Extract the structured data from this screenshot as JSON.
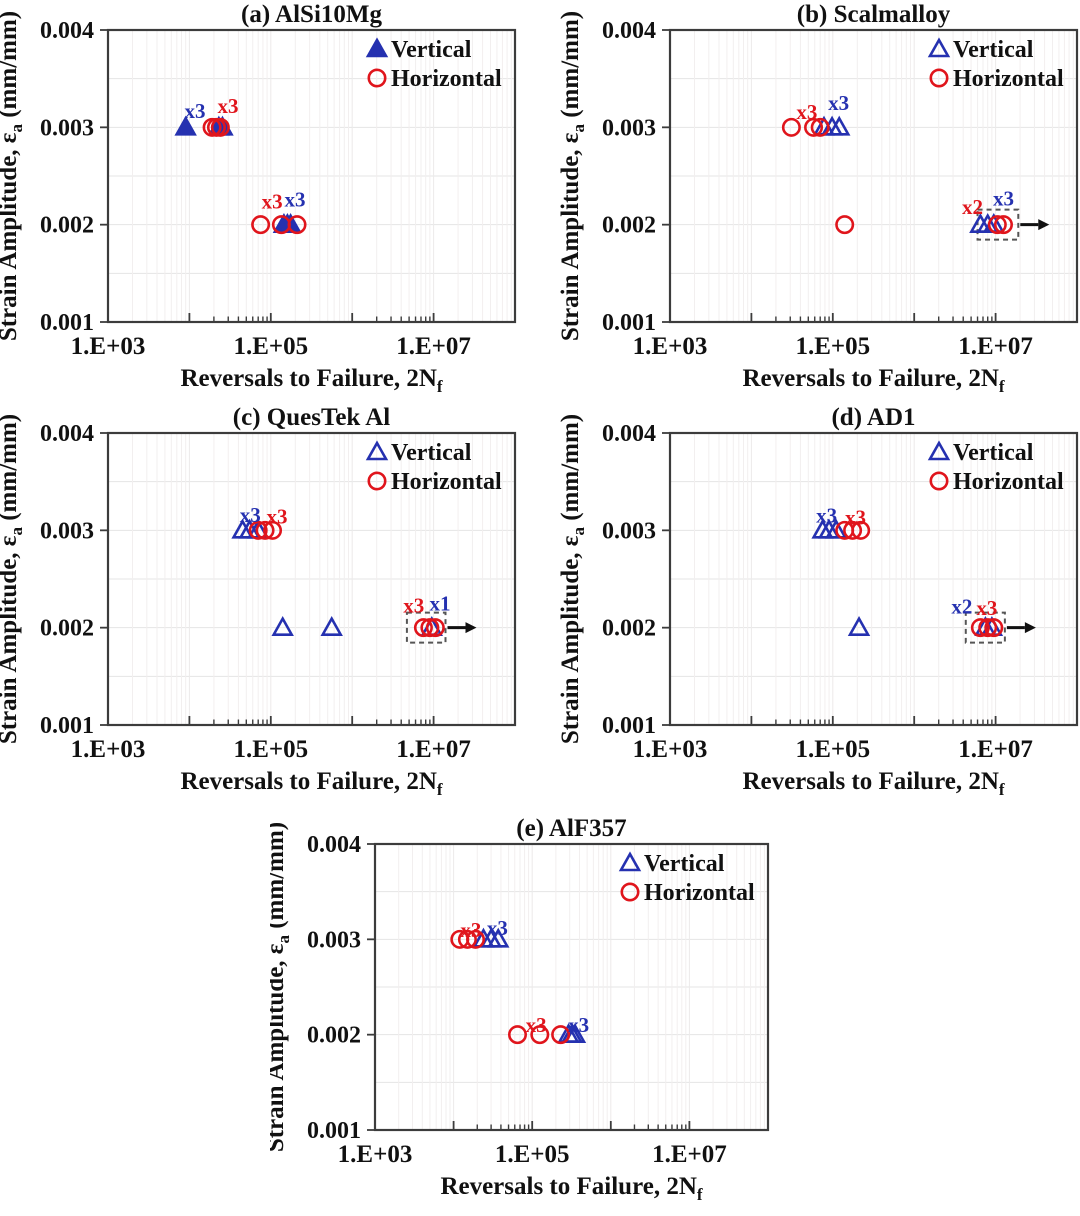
{
  "figure": {
    "axis": {
      "x_label_pre": "Reversals to Failure, 2N",
      "x_label_sub": "f",
      "y_label_pre": "Strain Amplitude, ε",
      "y_label_sub": "a",
      "y_label_post": " (mm/mm)",
      "x_tick_labels": [
        "1.E+03",
        "1.E+05",
        "1.E+07"
      ],
      "x_tick_values": [
        1000,
        100000,
        10000000
      ],
      "y_tick_labels": [
        "0.001",
        "0.002",
        "0.003",
        "0.004"
      ],
      "y_tick_values": [
        0.001,
        0.002,
        0.003,
        0.004
      ],
      "x_range": [
        1000,
        100000000
      ],
      "y_range": [
        0.001,
        0.004
      ],
      "x_scale": "log",
      "y_scale": "linear",
      "grid": "on"
    },
    "legend": {
      "position": "top-right-inside",
      "vertical_label": "Vertical",
      "horizontal_label": "Horizontal"
    },
    "colors": {
      "vertical": "#2531b0",
      "horizontal": "#e0151c",
      "text": "#111111",
      "frame": "#3c3c3c",
      "grid_horizontal": "#e4e4e4",
      "grid_vertical": "#f2efef",
      "grid_vertical_major": "#eceaea",
      "runout_box": "#555555",
      "arrow": "#111111"
    }
  },
  "chart_data": [
    {
      "id": "a",
      "type": "scatter",
      "title": "(a) AlSi10Mg",
      "series": [
        {
          "name": "Vertical",
          "marker": "triangle",
          "filled": true,
          "points": [
            [
              9000,
              0.003
            ],
            [
              23000,
              0.003
            ],
            [
              25500,
              0.003
            ],
            [
              145000,
              0.002
            ],
            [
              160000,
              0.002
            ],
            [
              175000,
              0.002
            ]
          ]
        },
        {
          "name": "Horizontal",
          "marker": "circle",
          "filled": false,
          "points": [
            [
              19000,
              0.003
            ],
            [
              21500,
              0.003
            ],
            [
              24000,
              0.003
            ],
            [
              75000,
              0.002
            ],
            [
              135000,
              0.002
            ],
            [
              210000,
              0.002
            ]
          ]
        }
      ],
      "annotations": [
        {
          "text": "x3",
          "series": "vertical",
          "x": 11700,
          "y": 0.00317
        },
        {
          "text": "x3",
          "series": "horizontal",
          "x": 29800,
          "y": 0.00322
        },
        {
          "text": "x3",
          "series": "horizontal",
          "x": 104000,
          "y": 0.00224
        },
        {
          "text": "x3",
          "series": "vertical",
          "x": 198000,
          "y": 0.00226
        }
      ],
      "runout": null
    },
    {
      "id": "b",
      "type": "scatter",
      "title": "(b) Scalmalloy",
      "series": [
        {
          "name": "Vertical",
          "marker": "triangle",
          "filled": false,
          "points": [
            [
              78000,
              0.003
            ],
            [
              98000,
              0.003
            ],
            [
              120000,
              0.003
            ],
            [
              6500000,
              0.002
            ],
            [
              8000000,
              0.002
            ],
            [
              9500000,
              0.002
            ]
          ]
        },
        {
          "name": "Horizontal",
          "marker": "circle",
          "filled": false,
          "points": [
            [
              31000,
              0.003
            ],
            [
              58000,
              0.003
            ],
            [
              70000,
              0.003
            ],
            [
              140000,
              0.002
            ],
            [
              10500000,
              0.002
            ],
            [
              12500000,
              0.002
            ]
          ]
        }
      ],
      "annotations": [
        {
          "text": "x3",
          "series": "horizontal",
          "x": 48000,
          "y": 0.00316
        },
        {
          "text": "x3",
          "series": "vertical",
          "x": 118000,
          "y": 0.00325
        },
        {
          "text": "x2",
          "series": "horizontal",
          "x": 5200000,
          "y": 0.00218
        },
        {
          "text": "x3",
          "series": "vertical",
          "x": 12500000,
          "y": 0.00227
        }
      ],
      "runout": {
        "x_min": 6000000,
        "x_max": 19000000,
        "y": 0.002,
        "arrow": true
      }
    },
    {
      "id": "c",
      "type": "scatter",
      "title": "(c) QuesTek Al",
      "series": [
        {
          "name": "Vertical",
          "marker": "triangle",
          "filled": false,
          "points": [
            [
              45000,
              0.003
            ],
            [
              55000,
              0.003
            ],
            [
              70000,
              0.003
            ],
            [
              140000,
              0.002
            ],
            [
              560000,
              0.002
            ],
            [
              9500000,
              0.002
            ]
          ]
        },
        {
          "name": "Horizontal",
          "marker": "circle",
          "filled": false,
          "points": [
            [
              70000,
              0.003
            ],
            [
              85000,
              0.003
            ],
            [
              105000,
              0.003
            ],
            [
              7500000,
              0.002
            ],
            [
              9000000,
              0.002
            ],
            [
              10500000,
              0.002
            ]
          ]
        }
      ],
      "annotations": [
        {
          "text": "x3",
          "series": "vertical",
          "x": 56000,
          "y": 0.00316
        },
        {
          "text": "x3",
          "series": "horizontal",
          "x": 119000,
          "y": 0.00314
        },
        {
          "text": "x3",
          "series": "horizontal",
          "x": 5700000,
          "y": 0.00223
        },
        {
          "text": "x1",
          "series": "vertical",
          "x": 12000000,
          "y": 0.00225
        }
      ],
      "runout": {
        "x_min": 4700000,
        "x_max": 14000000,
        "y": 0.002,
        "arrow": true
      }
    },
    {
      "id": "d",
      "type": "scatter",
      "title": "(d) AD1",
      "series": [
        {
          "name": "Vertical",
          "marker": "triangle",
          "filled": false,
          "points": [
            [
              75000,
              0.003
            ],
            [
              90000,
              0.003
            ],
            [
              110000,
              0.003
            ],
            [
              210000,
              0.002
            ],
            [
              7500000,
              0.002
            ],
            [
              9000000,
              0.002
            ]
          ]
        },
        {
          "name": "Horizontal",
          "marker": "circle",
          "filled": false,
          "points": [
            [
              140000,
              0.003
            ],
            [
              175000,
              0.003
            ],
            [
              220000,
              0.003
            ],
            [
              6500000,
              0.002
            ],
            [
              8000000,
              0.002
            ],
            [
              9500000,
              0.002
            ]
          ]
        }
      ],
      "annotations": [
        {
          "text": "x3",
          "series": "vertical",
          "x": 84000,
          "y": 0.00315
        },
        {
          "text": "x3",
          "series": "horizontal",
          "x": 190000,
          "y": 0.00313
        },
        {
          "text": "x2",
          "series": "vertical",
          "x": 3850000,
          "y": 0.00222
        },
        {
          "text": "x3",
          "series": "horizontal",
          "x": 7800000,
          "y": 0.0022
        }
      ],
      "runout": {
        "x_min": 4300000,
        "x_max": 13000000,
        "y": 0.002,
        "arrow": true
      }
    },
    {
      "id": "e",
      "type": "scatter",
      "title": "(e) AlF357",
      "series": [
        {
          "name": "Vertical",
          "marker": "triangle",
          "filled": false,
          "points": [
            [
              24000,
              0.003
            ],
            [
              30000,
              0.003
            ],
            [
              37000,
              0.003
            ],
            [
              290000,
              0.002
            ],
            [
              320000,
              0.002
            ],
            [
              350000,
              0.002
            ]
          ]
        },
        {
          "name": "Horizontal",
          "marker": "circle",
          "filled": false,
          "points": [
            [
              12000,
              0.003
            ],
            [
              15000,
              0.003
            ],
            [
              19000,
              0.003
            ],
            [
              65000,
              0.002
            ],
            [
              125000,
              0.002
            ],
            [
              230000,
              0.002
            ]
          ]
        }
      ],
      "annotations": [
        {
          "text": "x3",
          "series": "horizontal",
          "x": 16600,
          "y": 0.0031
        },
        {
          "text": "x3",
          "series": "vertical",
          "x": 36000,
          "y": 0.00312
        },
        {
          "text": "x3",
          "series": "horizontal",
          "x": 112000,
          "y": 0.0021
        },
        {
          "text": "x3",
          "series": "vertical",
          "x": 390000,
          "y": 0.0021
        }
      ],
      "runout": null
    }
  ]
}
